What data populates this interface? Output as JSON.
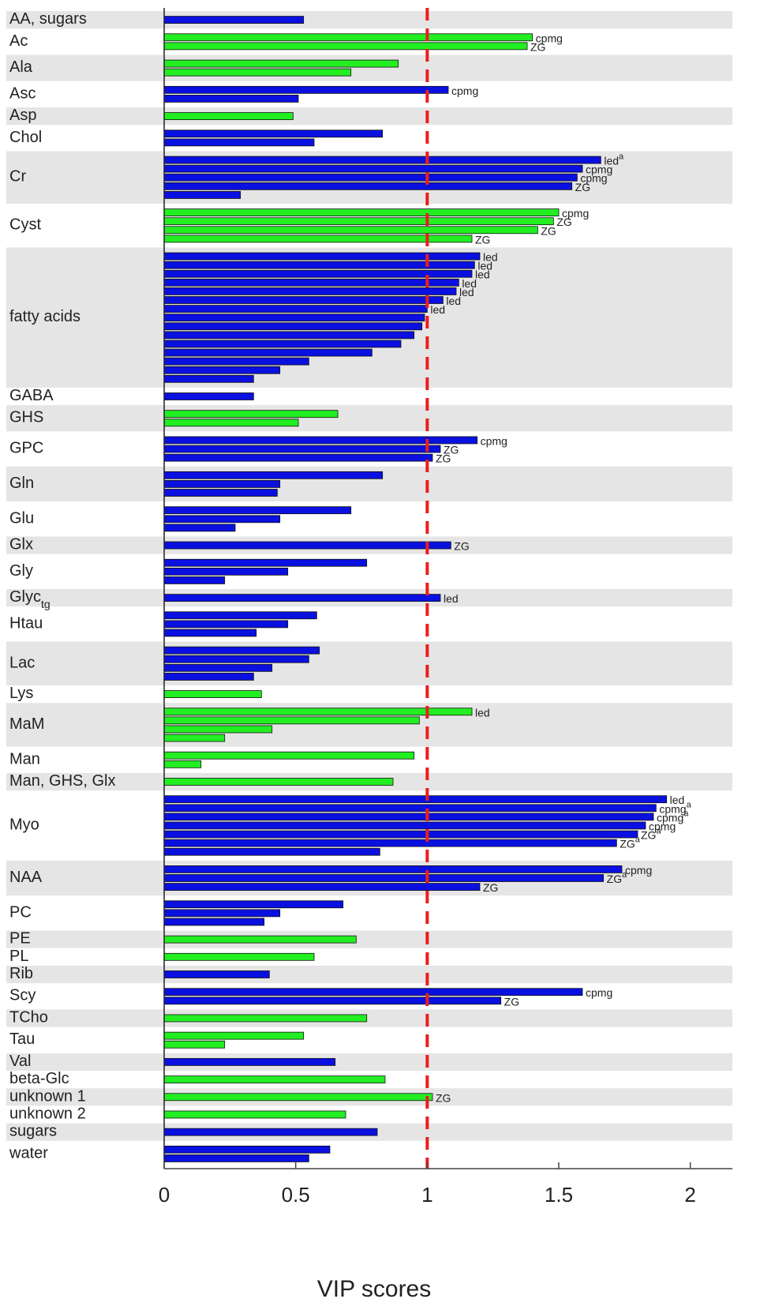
{
  "chart_data": {
    "type": "bar",
    "orientation": "horizontal",
    "xlabel": "VIP scores",
    "xlim": [
      0,
      2.16
    ],
    "xticks": [
      0,
      0.5,
      1,
      1.5,
      2
    ],
    "refline": 1,
    "refline_color": "#ee1c1c",
    "groups": [
      {
        "label": "AA, sugars",
        "color": "#0a10e0",
        "bars": [
          {
            "value": 0.53
          }
        ]
      },
      {
        "label": "Ac",
        "color": "#22ee22",
        "bars": [
          {
            "value": 1.4,
            "label": "cpmg"
          },
          {
            "value": 1.38,
            "label": "ZG"
          }
        ]
      },
      {
        "label": "Ala",
        "color": "#22ee22",
        "bars": [
          {
            "value": 0.89
          },
          {
            "value": 0.71
          }
        ]
      },
      {
        "label": "Asc",
        "color": "#0a10e0",
        "bars": [
          {
            "value": 1.08,
            "label": "cpmg"
          },
          {
            "value": 0.51
          }
        ]
      },
      {
        "label": "Asp",
        "color": "#22ee22",
        "bars": [
          {
            "value": 0.49
          }
        ]
      },
      {
        "label": "Chol",
        "color": "#0a10e0",
        "bars": [
          {
            "value": 0.83
          },
          {
            "value": 0.57
          }
        ]
      },
      {
        "label": "Cr",
        "color": "#0a10e0",
        "bars": [
          {
            "value": 1.66,
            "label": "led",
            "label_sup": "a"
          },
          {
            "value": 1.59,
            "label": "cpmg"
          },
          {
            "value": 1.57,
            "label": "cpmg"
          },
          {
            "value": 1.55,
            "label": "ZG"
          },
          {
            "value": 0.29
          }
        ]
      },
      {
        "label": "Cyst",
        "color": "#22ee22",
        "bars": [
          {
            "value": 1.5,
            "label": "cpmg"
          },
          {
            "value": 1.48,
            "label": "ZG"
          },
          {
            "value": 1.42,
            "label": "ZG"
          },
          {
            "value": 1.17,
            "label": "ZG"
          }
        ]
      },
      {
        "label": "fatty acids",
        "color": "#0a10e0",
        "bars": [
          {
            "value": 1.2,
            "label": "led"
          },
          {
            "value": 1.18,
            "label": "led"
          },
          {
            "value": 1.17,
            "label": "led"
          },
          {
            "value": 1.12,
            "label": "led"
          },
          {
            "value": 1.11,
            "label": "led"
          },
          {
            "value": 1.06,
            "label": "led"
          },
          {
            "value": 1.0,
            "label": "led"
          },
          {
            "value": 0.99
          },
          {
            "value": 0.98
          },
          {
            "value": 0.95
          },
          {
            "value": 0.9
          },
          {
            "value": 0.79
          },
          {
            "value": 0.55
          },
          {
            "value": 0.44
          },
          {
            "value": 0.34
          }
        ]
      },
      {
        "label": "GABA",
        "color": "#0a10e0",
        "bars": [
          {
            "value": 0.34
          }
        ]
      },
      {
        "label": "GHS",
        "color": "#22ee22",
        "bars": [
          {
            "value": 0.66
          },
          {
            "value": 0.51
          }
        ]
      },
      {
        "label": "GPC",
        "color": "#0a10e0",
        "bars": [
          {
            "value": 1.19,
            "label": "cpmg"
          },
          {
            "value": 1.05,
            "label": "ZG"
          },
          {
            "value": 1.02,
            "label": "ZG"
          }
        ]
      },
      {
        "label": "Gln",
        "color": "#0a10e0",
        "bars": [
          {
            "value": 0.83
          },
          {
            "value": 0.44
          },
          {
            "value": 0.43
          }
        ]
      },
      {
        "label": "Glu",
        "color": "#0a10e0",
        "bars": [
          {
            "value": 0.71
          },
          {
            "value": 0.44
          },
          {
            "value": 0.27
          }
        ]
      },
      {
        "label": "Glx",
        "color": "#0a10e0",
        "bars": [
          {
            "value": 1.09,
            "label": "ZG"
          }
        ]
      },
      {
        "label": "Gly",
        "color": "#0a10e0",
        "bars": [
          {
            "value": 0.77
          },
          {
            "value": 0.47
          },
          {
            "value": 0.23
          }
        ]
      },
      {
        "label": "Glyc",
        "label_sub": "tg",
        "color": "#0a10e0",
        "bars": [
          {
            "value": 1.05,
            "label": "led"
          }
        ]
      },
      {
        "label": "Htau",
        "color": "#0a10e0",
        "bars": [
          {
            "value": 0.58
          },
          {
            "value": 0.47
          },
          {
            "value": 0.35
          }
        ]
      },
      {
        "label": "Lac",
        "color": "#0a10e0",
        "bars": [
          {
            "value": 0.59
          },
          {
            "value": 0.55
          },
          {
            "value": 0.41
          },
          {
            "value": 0.34
          }
        ]
      },
      {
        "label": "Lys",
        "color": "#22ee22",
        "bars": [
          {
            "value": 0.37
          }
        ]
      },
      {
        "label": "MaM",
        "color": "#22ee22",
        "bars": [
          {
            "value": 1.17,
            "label": "led"
          },
          {
            "value": 0.97
          },
          {
            "value": 0.41
          },
          {
            "value": 0.23
          }
        ]
      },
      {
        "label": "Man",
        "color": "#22ee22",
        "bars": [
          {
            "value": 0.95
          },
          {
            "value": 0.14
          }
        ]
      },
      {
        "label": "Man, GHS, Glx",
        "color": "#22ee22",
        "bars": [
          {
            "value": 0.87
          }
        ]
      },
      {
        "label": "Myo",
        "color": "#0a10e0",
        "bars": [
          {
            "value": 1.91,
            "label": "led"
          },
          {
            "value": 1.87,
            "label": "cpmg",
            "label_sup": "a"
          },
          {
            "value": 1.86,
            "label": "cpmg",
            "label_sup": "a"
          },
          {
            "value": 1.83,
            "label": "cpmg"
          },
          {
            "value": 1.8,
            "label": "ZG",
            "label_sup": "a"
          },
          {
            "value": 1.72,
            "label": "ZG",
            "label_sup": "a"
          },
          {
            "value": 0.82
          }
        ]
      },
      {
        "label": "NAA",
        "color": "#0a10e0",
        "bars": [
          {
            "value": 1.74,
            "label": "cpmg"
          },
          {
            "value": 1.67,
            "label": "ZG",
            "label_sup": "a"
          },
          {
            "value": 1.2,
            "label": "ZG"
          }
        ]
      },
      {
        "label": "PC",
        "color": "#0a10e0",
        "bars": [
          {
            "value": 0.68
          },
          {
            "value": 0.44
          },
          {
            "value": 0.38
          }
        ]
      },
      {
        "label": "PE",
        "color": "#22ee22",
        "bars": [
          {
            "value": 0.73
          }
        ]
      },
      {
        "label": "PL",
        "color": "#22ee22",
        "bars": [
          {
            "value": 0.57
          }
        ]
      },
      {
        "label": "Rib",
        "color": "#0a10e0",
        "bars": [
          {
            "value": 0.4
          }
        ]
      },
      {
        "label": "Scy",
        "color": "#0a10e0",
        "bars": [
          {
            "value": 1.59,
            "label": "cpmg"
          },
          {
            "value": 1.28,
            "label": "ZG"
          }
        ]
      },
      {
        "label": "TCho",
        "color": "#22ee22",
        "bars": [
          {
            "value": 0.77
          }
        ]
      },
      {
        "label": "Tau",
        "color": "#22ee22",
        "bars": [
          {
            "value": 0.53
          },
          {
            "value": 0.23
          }
        ]
      },
      {
        "label": "Val",
        "color": "#0a10e0",
        "bars": [
          {
            "value": 0.65
          }
        ]
      },
      {
        "label": "beta-Glc",
        "color": "#22ee22",
        "bars": [
          {
            "value": 0.84
          }
        ]
      },
      {
        "label": "unknown 1",
        "color": "#22ee22",
        "bars": [
          {
            "value": 1.02,
            "label": "ZG"
          }
        ]
      },
      {
        "label": "unknown 2",
        "color": "#22ee22",
        "bars": [
          {
            "value": 0.69
          }
        ]
      },
      {
        "label": "sugars",
        "color": "#0a10e0",
        "bars": [
          {
            "value": 0.81
          }
        ]
      },
      {
        "label": "water",
        "color": "#0a10e0",
        "bars": [
          {
            "value": 0.63
          },
          {
            "value": 0.55
          }
        ]
      }
    ]
  }
}
